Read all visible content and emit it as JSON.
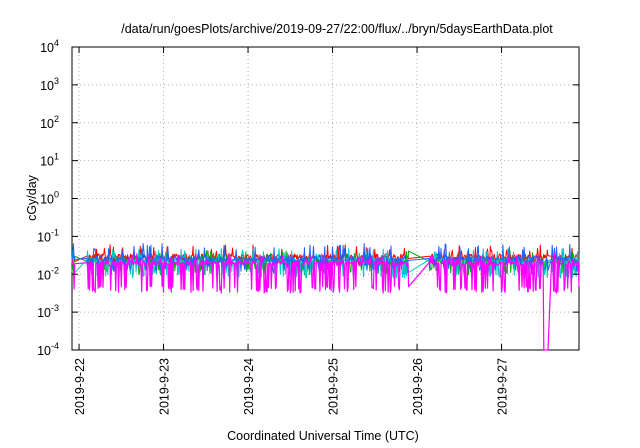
{
  "chart_data": {
    "type": "line",
    "title": "/data/run/goesPlots/archive/2019-09-27/22:00/flux/../bryn/5daysEarthData.plot",
    "xlabel": "Coordinated Universal Time (UTC)",
    "ylabel": "cGy/day",
    "yscale": "log",
    "ylim": [
      0.0001,
      10000
    ],
    "xlim": [
      "2019-09-21 22:00",
      "2019-09-27 22:00"
    ],
    "grid": true,
    "x_ticks": [
      "2019-9-22",
      "2019-9-23",
      "2019-9-24",
      "2019-9-25",
      "2019-9-26",
      "2019-9-27"
    ],
    "y_ticks": [
      {
        "base": "10",
        "exp": "-4",
        "value": 0.0001
      },
      {
        "base": "10",
        "exp": "-3",
        "value": 0.001
      },
      {
        "base": "10",
        "exp": "-2",
        "value": 0.01
      },
      {
        "base": "10",
        "exp": "-1",
        "value": 0.1
      },
      {
        "base": "10",
        "exp": "0",
        "value": 1
      },
      {
        "base": "10",
        "exp": "1",
        "value": 10
      },
      {
        "base": "10",
        "exp": "2",
        "value": 100
      },
      {
        "base": "10",
        "exp": "3",
        "value": 1000
      },
      {
        "base": "10",
        "exp": "4",
        "value": 10000
      }
    ],
    "series": [
      {
        "color": "#ff0000",
        "base": 0.03,
        "spike": 0.05,
        "dip": 0.02,
        "seed": 11
      },
      {
        "color": "#00aa00",
        "base": 0.022,
        "spike": 0.035,
        "dip": 0.012,
        "seed": 23
      },
      {
        "color": "#00c8c8",
        "base": 0.024,
        "spike": 0.04,
        "dip": 0.01,
        "seed": 37
      },
      {
        "color": "#2060ff",
        "base": 0.026,
        "spike": 0.055,
        "dip": 0.015,
        "seed": 41
      },
      {
        "color": "#ff00ff",
        "base": 0.02,
        "spike": 0.03,
        "dip": 0.004,
        "seed": 53
      }
    ],
    "gaps": [
      {
        "start": "2019-09-21 22:48",
        "end": "2019-09-22 02:24"
      },
      {
        "start": "2019-09-25 21:36",
        "end": "2019-09-26 03:36"
      },
      {
        "start": "2019-09-27 13:12",
        "end": "2019-09-27 14:24"
      }
    ],
    "dropout": {
      "start": "2019-09-27 12:00",
      "end": "2019-09-27 13:12",
      "value": 0.0001
    }
  }
}
